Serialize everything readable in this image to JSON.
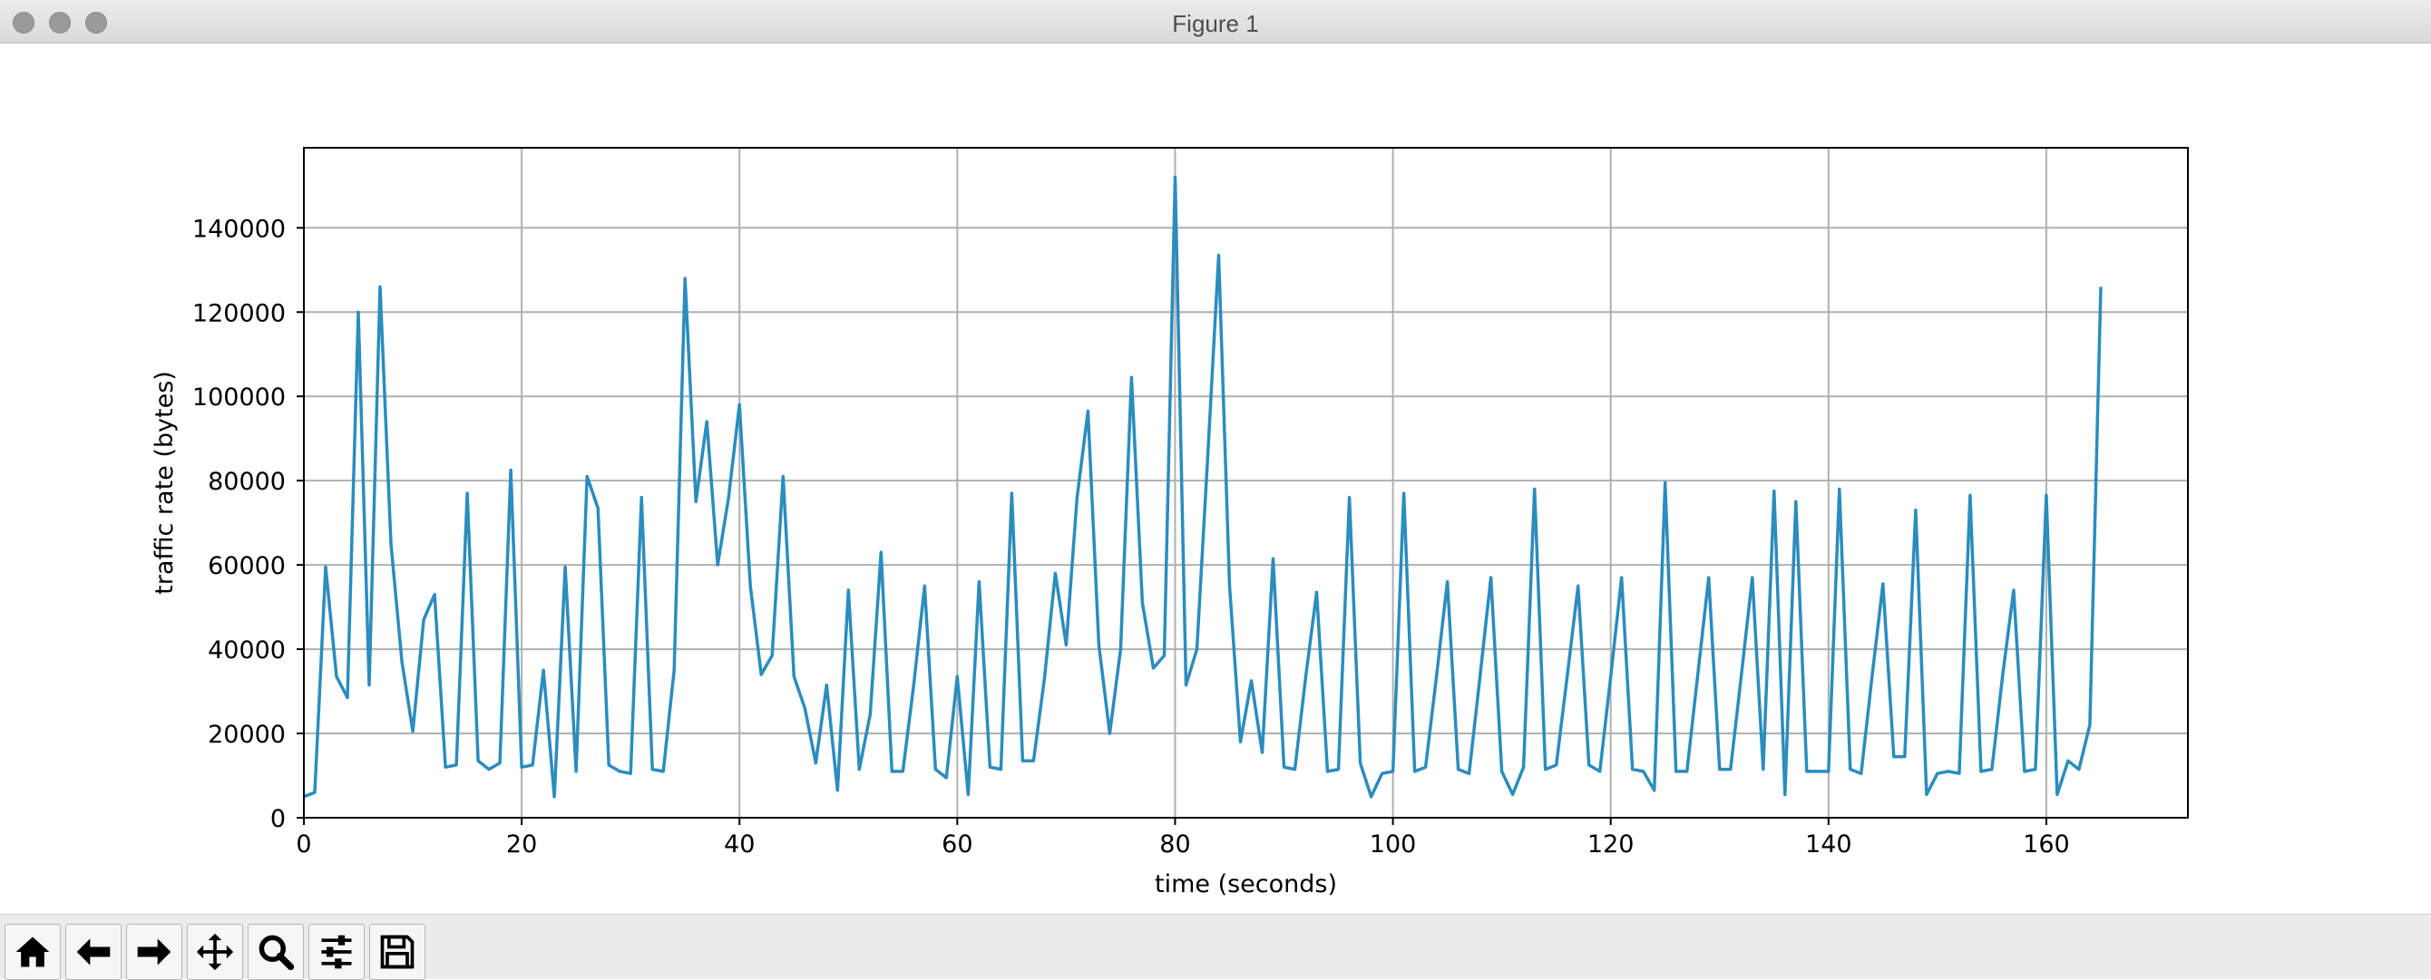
{
  "window": {
    "title": "Figure 1"
  },
  "toolbar": {
    "buttons": [
      {
        "icon": "home-icon",
        "name": "home-button"
      },
      {
        "icon": "arrow-left-icon",
        "name": "back-button"
      },
      {
        "icon": "arrow-right-icon",
        "name": "forward-button"
      },
      {
        "icon": "move-icon",
        "name": "pan-button"
      },
      {
        "icon": "magnifier-icon",
        "name": "zoom-button"
      },
      {
        "icon": "sliders-icon",
        "name": "configure-subplots-button"
      },
      {
        "icon": "floppy-disk-icon",
        "name": "save-button"
      }
    ]
  },
  "colors": {
    "line": "#2b8cbe",
    "grid": "#b0b0b0",
    "axes": "#000000"
  },
  "chart_data": {
    "type": "line",
    "xlabel": "time (seconds)",
    "ylabel": "traffic rate (bytes)",
    "xlim": [
      0,
      173
    ],
    "ylim": [
      0,
      140000
    ],
    "ylim_display_top": 159000,
    "grid": true,
    "xticks": [
      0,
      20,
      40,
      60,
      80,
      100,
      120,
      140,
      160
    ],
    "yticks": [
      0,
      20000,
      40000,
      60000,
      80000,
      100000,
      120000,
      140000
    ],
    "series": [
      {
        "x": [
          0,
          1,
          2,
          3,
          4,
          5,
          6,
          7,
          8,
          9,
          10,
          11,
          12,
          13,
          14,
          15,
          16,
          17,
          18,
          19,
          20,
          21,
          22,
          23,
          24,
          25,
          26,
          27,
          28,
          29,
          30,
          31,
          32,
          33,
          34,
          35,
          36,
          37,
          38,
          39,
          40,
          41,
          42,
          43,
          44,
          45,
          46,
          47,
          48,
          49,
          50,
          51,
          52,
          53,
          54,
          55,
          56,
          57,
          58,
          59,
          60,
          61,
          62,
          63,
          64,
          65,
          66,
          67,
          68,
          69,
          70,
          71,
          72,
          73,
          74,
          75,
          76,
          77,
          78,
          79,
          80,
          81,
          82,
          83,
          84,
          85,
          86,
          87,
          88,
          89,
          90,
          91,
          92,
          93,
          94,
          95,
          96,
          97,
          98,
          99,
          100,
          101,
          102,
          103,
          104,
          105,
          106,
          107,
          108,
          109,
          110,
          111,
          112,
          113,
          114,
          115,
          116,
          117,
          118,
          119,
          120,
          121,
          122,
          123,
          124,
          125,
          126,
          127,
          128,
          129,
          130,
          131,
          132,
          133,
          134,
          135,
          136,
          137,
          138,
          139,
          140,
          141,
          142,
          143,
          144,
          145,
          146,
          147,
          148,
          149,
          150,
          151,
          152,
          153,
          154,
          155,
          156,
          157,
          158,
          159,
          160,
          161,
          162,
          163,
          164,
          165
        ],
        "y": [
          5000,
          6000,
          59500,
          33500,
          28500,
          120000,
          31500,
          126000,
          65000,
          37000,
          20500,
          47000,
          53000,
          12000,
          12500,
          77000,
          13500,
          11500,
          13000,
          82500,
          12000,
          12500,
          35000,
          5000,
          59500,
          11000,
          81000,
          73500,
          12500,
          11000,
          10500,
          76000,
          11500,
          11000,
          35000,
          128000,
          75000,
          94000,
          60000,
          76000,
          98000,
          55000,
          34000,
          38500,
          81000,
          33500,
          26000,
          13000,
          31500,
          6500,
          54000,
          11500,
          24500,
          63000,
          11000,
          11000,
          31500,
          55000,
          11500,
          9500,
          33500,
          5500,
          56000,
          12000,
          11500,
          77000,
          13500,
          13500,
          33000,
          58000,
          41000,
          76000,
          96500,
          41000,
          20000,
          40000,
          104500,
          51000,
          35500,
          38500,
          152000,
          31500,
          40000,
          86000,
          133500,
          55000,
          18000,
          32500,
          15500,
          61500,
          12000,
          11500,
          33500,
          53500,
          11000,
          11500,
          76000,
          13000,
          5000,
          10500,
          11000,
          77000,
          11000,
          12000,
          33500,
          56000,
          11500,
          10500,
          33500,
          57000,
          11000,
          5500,
          12000,
          78000,
          11500,
          12500,
          33500,
          55000,
          12500,
          11000,
          33500,
          57000,
          11500,
          11000,
          6500,
          79500,
          11000,
          11000,
          34000,
          57000,
          11500,
          11500,
          34000,
          57000,
          11500,
          77500,
          5500,
          75000,
          11000,
          11000,
          11000,
          78000,
          11500,
          10500,
          33500,
          55500,
          14500,
          14500,
          73000,
          5500,
          10500,
          11000,
          10500,
          76500,
          11000,
          11500,
          34000,
          54000,
          11000,
          11500,
          76500,
          5500,
          13500,
          11500,
          22000,
          126000
        ]
      }
    ]
  }
}
